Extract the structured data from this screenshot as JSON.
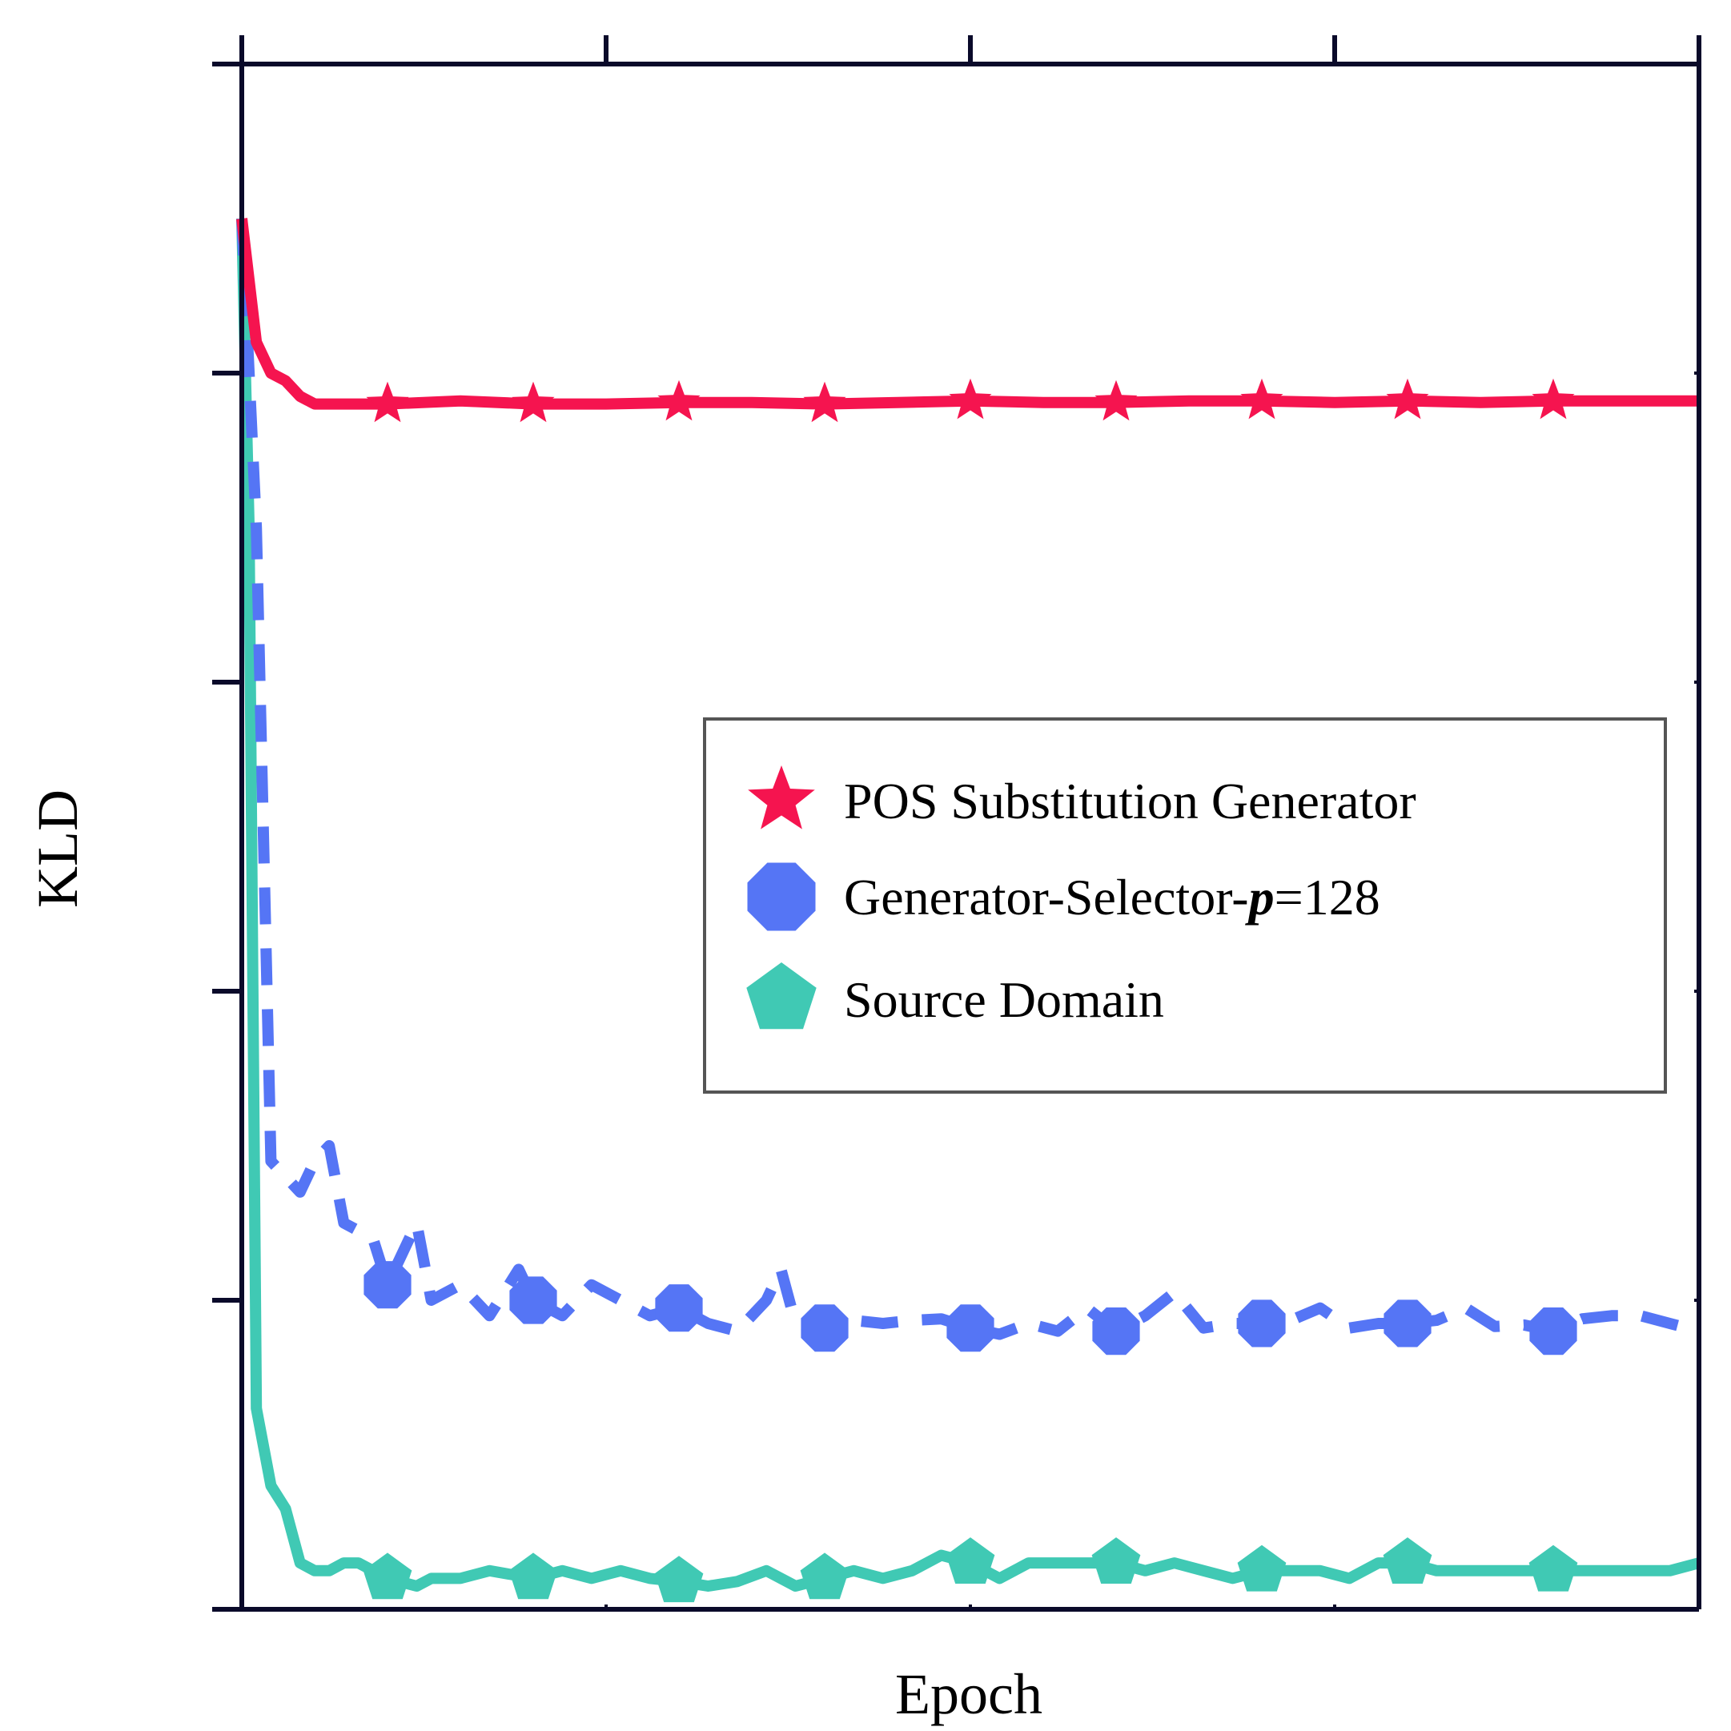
{
  "chart_data": {
    "type": "line",
    "title": "",
    "xlabel": "Epoch",
    "ylabel": "KLD",
    "xlim": [
      0,
      100
    ],
    "ylim": [
      0,
      100
    ],
    "x_ticks": [
      0,
      25,
      50,
      75,
      100
    ],
    "y_ticks": [
      0,
      20,
      40,
      60,
      80,
      100
    ],
    "tick_labels_visible": false,
    "grid": false,
    "legend_position": "center-right",
    "series": [
      {
        "name": "POS Substitution Generator",
        "color": "#f5144f",
        "line_style": "solid",
        "marker": "star",
        "x": [
          0,
          1,
          2,
          3,
          4,
          5,
          10,
          15,
          20,
          25,
          30,
          35,
          40,
          45,
          50,
          55,
          60,
          65,
          70,
          75,
          80,
          85,
          90,
          95,
          100
        ],
        "values": [
          90,
          82,
          80,
          79.5,
          78.5,
          78,
          78,
          78.2,
          78,
          78,
          78.1,
          78.1,
          78,
          78.1,
          78.2,
          78.1,
          78.1,
          78.2,
          78.2,
          78.1,
          78.2,
          78.1,
          78.2,
          78.2,
          78.2
        ],
        "markers_at": [
          10,
          20,
          30,
          40,
          50,
          60,
          70,
          80,
          90
        ]
      },
      {
        "name": "Generator-Selector-p=128",
        "legend_label_parts": [
          "Generator-Selector-",
          "p",
          "=128"
        ],
        "color": "#5575f5",
        "line_style": "dashed",
        "marker": "octagon",
        "x": [
          0,
          1,
          2,
          3,
          4,
          5,
          6,
          7,
          9,
          10,
          12,
          13,
          15,
          17,
          19,
          20,
          22,
          24,
          26,
          28,
          30,
          32,
          34,
          36,
          37,
          38,
          40,
          42,
          44,
          46,
          48,
          50,
          52,
          54,
          56,
          58,
          60,
          62,
          64,
          66,
          68,
          70,
          72,
          74,
          76,
          78,
          80,
          82,
          84,
          86,
          88,
          90,
          92,
          94,
          96,
          98,
          100
        ],
        "values": [
          90,
          70,
          29,
          28,
          27,
          29,
          30,
          25,
          24,
          21,
          25,
          20,
          21,
          19,
          22,
          20,
          19,
          21,
          20,
          19,
          19.5,
          18.5,
          18,
          20,
          22,
          18.5,
          18.2,
          18.7,
          18.5,
          18.7,
          18.8,
          18.2,
          17.8,
          18.5,
          18,
          19.5,
          18,
          19,
          20.5,
          18.2,
          18.5,
          18.5,
          18.7,
          19.5,
          18.2,
          18.5,
          18.5,
          18.7,
          19.5,
          18.3,
          18.4,
          18,
          18.8,
          19,
          19,
          18.5,
          18
        ],
        "markers_at": [
          10,
          20,
          30,
          40,
          50,
          60,
          70,
          80,
          90
        ]
      },
      {
        "name": "Source Domain",
        "color": "#40c9b4",
        "line_style": "solid",
        "marker": "pentagon",
        "x": [
          0,
          0.5,
          1,
          2,
          3,
          4,
          5,
          6,
          7,
          8,
          10,
          12,
          13,
          15,
          17,
          20,
          22,
          24,
          26,
          28,
          30,
          32,
          34,
          36,
          38,
          40,
          42,
          44,
          46,
          48,
          50,
          52,
          54,
          56,
          58,
          60,
          62,
          64,
          66,
          68,
          70,
          72,
          74,
          76,
          78,
          80,
          82,
          84,
          86,
          88,
          90,
          92,
          94,
          96,
          98,
          100
        ],
        "values": [
          90,
          70,
          13,
          8,
          6.5,
          3,
          2.5,
          2.5,
          3,
          3,
          2,
          1.5,
          2,
          2,
          2.5,
          2,
          2.5,
          2,
          2.5,
          2,
          1.8,
          1.5,
          1.8,
          2.5,
          1.5,
          2,
          2.5,
          2,
          2.5,
          3.5,
          3,
          2,
          3,
          3,
          3,
          3,
          2.5,
          3,
          2.5,
          2,
          2.5,
          2.5,
          2.5,
          2,
          3,
          3,
          2.5,
          2.5,
          2.5,
          2.5,
          2.5,
          2.5,
          2.5,
          2.5,
          2.5,
          3
        ],
        "markers_at": [
          10,
          20,
          30,
          40,
          50,
          60,
          70,
          80,
          90
        ]
      }
    ]
  }
}
